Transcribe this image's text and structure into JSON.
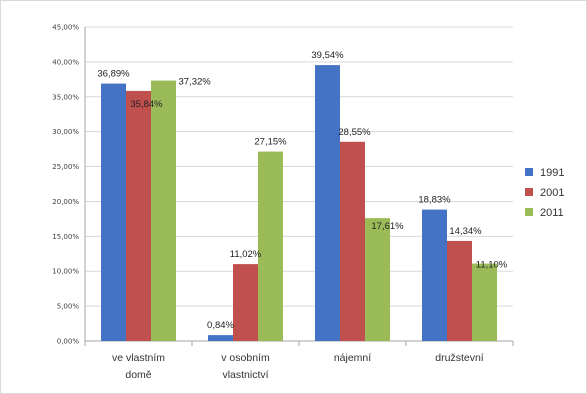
{
  "chart_data": {
    "type": "bar",
    "title": "",
    "xlabel": "",
    "ylabel": "",
    "categories": [
      [
        "ve vlastním",
        "domě"
      ],
      [
        "v osobním",
        "vlastnictví"
      ],
      [
        "nájemní"
      ],
      [
        "družstevní"
      ]
    ],
    "series": [
      {
        "name": "1991",
        "color": "#4472c4",
        "values": [
          36.89,
          0.84,
          39.54,
          18.83
        ],
        "labels": [
          "36,89%",
          "0,84%",
          "39,54%",
          "18,83%"
        ]
      },
      {
        "name": "2001",
        "color": "#c0504d",
        "values": [
          35.84,
          11.02,
          28.55,
          14.34
        ],
        "labels": [
          "35,84%",
          "11,02%",
          "28,55%",
          "14,34%"
        ]
      },
      {
        "name": "2011",
        "color": "#9bbb59",
        "values": [
          37.32,
          27.15,
          17.61,
          11.1
        ],
        "labels": [
          "37,32%",
          "27,15%",
          "17,61%",
          "11,10%"
        ]
      }
    ],
    "ylim": [
      0,
      45
    ],
    "yticks": [
      0,
      5,
      10,
      15,
      20,
      25,
      30,
      35,
      40,
      45
    ],
    "ytick_labels": [
      "0,00%",
      "5,00%",
      "10,00%",
      "15,00%",
      "20,00%",
      "25,00%",
      "30,00%",
      "35,00%",
      "40,00%",
      "45,00%"
    ],
    "grid": true,
    "legend_position": "right"
  }
}
